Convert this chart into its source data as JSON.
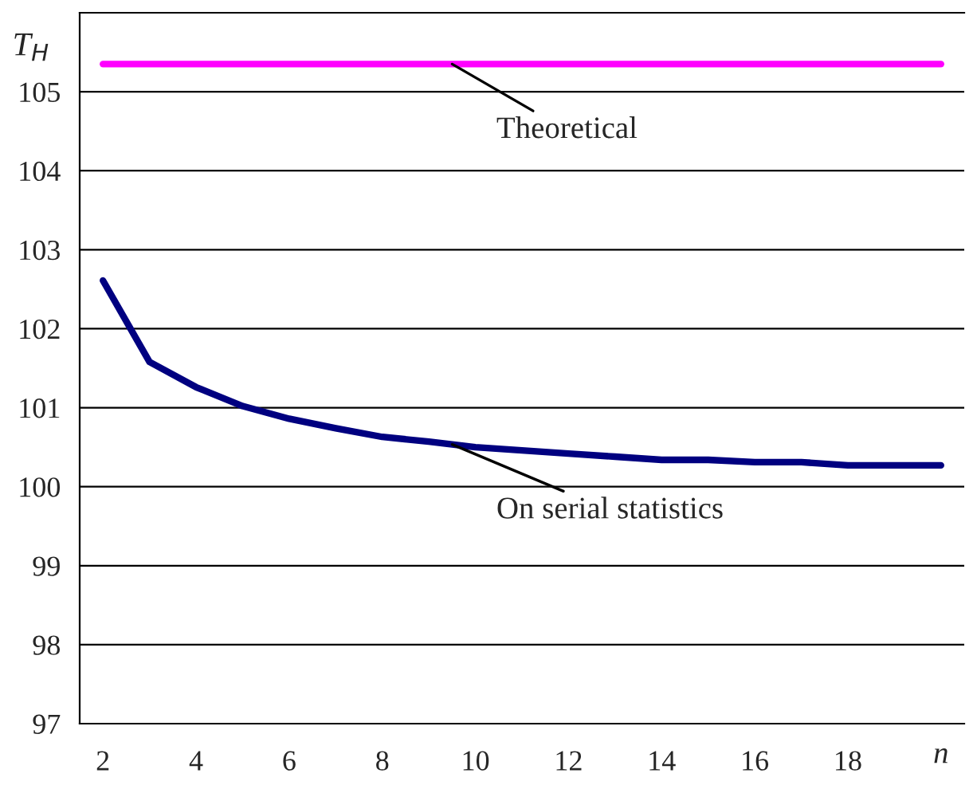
{
  "chart_data": {
    "type": "line",
    "xlabel": "n",
    "ylabel": "T$_{H}$",
    "categories": [
      "2",
      null,
      "4",
      null,
      "6",
      null,
      "8",
      null,
      "10",
      null,
      "12",
      null,
      "14",
      null,
      "16",
      null,
      "18",
      null,
      null
    ],
    "series": [
      {
        "name": "Theoretical",
        "color": "#ff00ff",
        "values": [
          105.35,
          105.35,
          105.35,
          105.35,
          105.35,
          105.35,
          105.35,
          105.35,
          105.35,
          105.35,
          105.35,
          105.35,
          105.35,
          105.35,
          105.35,
          105.35,
          105.35,
          105.35,
          105.35
        ]
      },
      {
        "name": "On serial statistics",
        "color": "#000080",
        "values": [
          102.61,
          101.58,
          101.26,
          101.02,
          100.86,
          100.74,
          100.63,
          100.57,
          100.5,
          100.46,
          100.42,
          100.38,
          100.34,
          100.34,
          100.31,
          100.31,
          100.27,
          100.27,
          100.27
        ]
      }
    ],
    "ylim": [
      97,
      106
    ],
    "yticks": [
      97,
      98,
      99,
      100,
      101,
      102,
      103,
      104,
      105
    ],
    "grid": "y",
    "legend": false,
    "marker": "none",
    "line_style": "solid"
  }
}
